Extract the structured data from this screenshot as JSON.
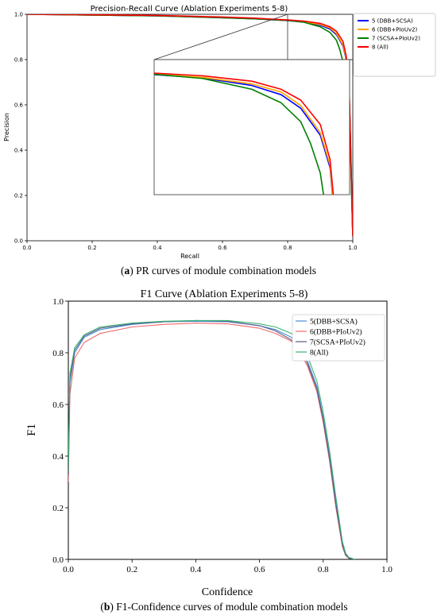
{
  "chart_data": [
    {
      "type": "line",
      "title": "Precision-Recall Curve (Ablation Experiments 5-8)",
      "xlabel": "Recall",
      "ylabel": "Precision",
      "xlim": [
        0,
        1
      ],
      "ylim": [
        0,
        1
      ],
      "xticks": [
        "0.0",
        "0.2",
        "0.4",
        "0.6",
        "0.8",
        "1.0"
      ],
      "yticks": [
        "0.0",
        "0.2",
        "0.4",
        "0.6",
        "0.8",
        "1.0"
      ],
      "legend_position": "top-right",
      "inset": {
        "source_region": {
          "x": [
            0.8,
            1.0
          ],
          "y": [
            0.75,
            1.0
          ]
        },
        "shown_as": "zoomed inset in lower-right area"
      },
      "caption_bold": "a",
      "caption_text": ") PR curves of module combination models",
      "series": [
        {
          "name": "5 (DBB+SCSA)",
          "color": "#0000ff",
          "x": [
            0,
            0.2,
            0.4,
            0.6,
            0.7,
            0.75,
            0.8,
            0.85,
            0.9,
            0.93,
            0.95,
            0.97,
            0.98,
            0.99,
            1.0
          ],
          "y": [
            1.0,
            0.997,
            0.993,
            0.985,
            0.98,
            0.976,
            0.972,
            0.966,
            0.952,
            0.935,
            0.91,
            0.86,
            0.8,
            0.6,
            0.02
          ]
        },
        {
          "name": "6 (DBB+PIoUv2)",
          "color": "#ffa500",
          "x": [
            0,
            0.2,
            0.4,
            0.6,
            0.7,
            0.75,
            0.8,
            0.85,
            0.9,
            0.93,
            0.95,
            0.97,
            0.98,
            0.99,
            1.0
          ],
          "y": [
            1.0,
            0.997,
            0.994,
            0.986,
            0.981,
            0.977,
            0.973,
            0.967,
            0.955,
            0.94,
            0.915,
            0.865,
            0.805,
            0.6,
            0.02
          ]
        },
        {
          "name": "7 (SCSA+PIoUv2)",
          "color": "#008000",
          "x": [
            0,
            0.2,
            0.4,
            0.6,
            0.7,
            0.75,
            0.8,
            0.85,
            0.9,
            0.93,
            0.95,
            0.96,
            0.97,
            0.99,
            1.0
          ],
          "y": [
            1.0,
            0.997,
            0.993,
            0.985,
            0.98,
            0.977,
            0.973,
            0.965,
            0.945,
            0.92,
            0.885,
            0.845,
            0.79,
            0.55,
            0.02
          ]
        },
        {
          "name": "8 (All)",
          "color": "#ff0000",
          "x": [
            0,
            0.2,
            0.4,
            0.6,
            0.7,
            0.75,
            0.8,
            0.85,
            0.9,
            0.93,
            0.95,
            0.97,
            0.98,
            0.99,
            1.0
          ],
          "y": [
            1.0,
            0.998,
            0.995,
            0.988,
            0.983,
            0.979,
            0.975,
            0.97,
            0.96,
            0.945,
            0.925,
            0.88,
            0.815,
            0.62,
            0.02
          ]
        }
      ]
    },
    {
      "type": "line",
      "title": "F1 Curve (Ablation Experiments 5-8)",
      "xlabel": "Confidence",
      "ylabel": "F1",
      "xlim": [
        0,
        1
      ],
      "ylim": [
        0,
        1
      ],
      "xticks": [
        "0.0",
        "0.2",
        "0.4",
        "0.6",
        "0.8",
        "1.0"
      ],
      "yticks": [
        "0.0",
        "0.2",
        "0.4",
        "0.6",
        "0.8",
        "1.0"
      ],
      "legend_position": "top-right",
      "caption_bold": "b",
      "caption_text": ") F1-Confidence curves of module combination models",
      "series": [
        {
          "name": "5(DBB+SCSA)",
          "color": "#4a8fd8",
          "x": [
            0,
            0.005,
            0.02,
            0.05,
            0.1,
            0.2,
            0.3,
            0.4,
            0.5,
            0.6,
            0.65,
            0.7,
            0.72,
            0.75,
            0.78,
            0.8,
            0.82,
            0.84,
            0.86,
            0.87,
            0.88,
            0.9
          ],
          "y": [
            0.32,
            0.68,
            0.8,
            0.86,
            0.89,
            0.91,
            0.92,
            0.922,
            0.92,
            0.905,
            0.89,
            0.86,
            0.83,
            0.77,
            0.67,
            0.55,
            0.4,
            0.22,
            0.06,
            0.02,
            0.005,
            0.0
          ]
        },
        {
          "name": "6(DBB+PIoUv2)",
          "color": "#f06a6a",
          "x": [
            0,
            0.005,
            0.02,
            0.05,
            0.1,
            0.2,
            0.3,
            0.4,
            0.5,
            0.6,
            0.65,
            0.7,
            0.72,
            0.75,
            0.78,
            0.8,
            0.82,
            0.84,
            0.86,
            0.87,
            0.88,
            0.9
          ],
          "y": [
            0.3,
            0.64,
            0.78,
            0.84,
            0.875,
            0.9,
            0.91,
            0.915,
            0.912,
            0.895,
            0.875,
            0.845,
            0.815,
            0.75,
            0.65,
            0.53,
            0.38,
            0.2,
            0.05,
            0.015,
            0.005,
            0.0
          ]
        },
        {
          "name": "7(SCSA+PIoUv2)",
          "color": "#5a5a8a",
          "x": [
            0,
            0.005,
            0.02,
            0.05,
            0.1,
            0.2,
            0.3,
            0.4,
            0.5,
            0.6,
            0.65,
            0.7,
            0.72,
            0.75,
            0.78,
            0.8,
            0.82,
            0.84,
            0.86,
            0.87,
            0.88,
            0.9
          ],
          "y": [
            0.33,
            0.7,
            0.81,
            0.865,
            0.895,
            0.912,
            0.92,
            0.925,
            0.922,
            0.905,
            0.885,
            0.85,
            0.82,
            0.76,
            0.66,
            0.54,
            0.39,
            0.21,
            0.055,
            0.018,
            0.005,
            0.0
          ]
        },
        {
          "name": "8(All)",
          "color": "#3cb371",
          "x": [
            0,
            0.005,
            0.02,
            0.05,
            0.1,
            0.2,
            0.3,
            0.4,
            0.5,
            0.6,
            0.65,
            0.7,
            0.72,
            0.75,
            0.78,
            0.8,
            0.82,
            0.84,
            0.86,
            0.87,
            0.88,
            0.9
          ],
          "y": [
            0.34,
            0.72,
            0.82,
            0.87,
            0.9,
            0.915,
            0.922,
            0.925,
            0.925,
            0.912,
            0.9,
            0.875,
            0.85,
            0.79,
            0.69,
            0.57,
            0.42,
            0.24,
            0.07,
            0.025,
            0.008,
            0.0
          ]
        }
      ]
    }
  ]
}
